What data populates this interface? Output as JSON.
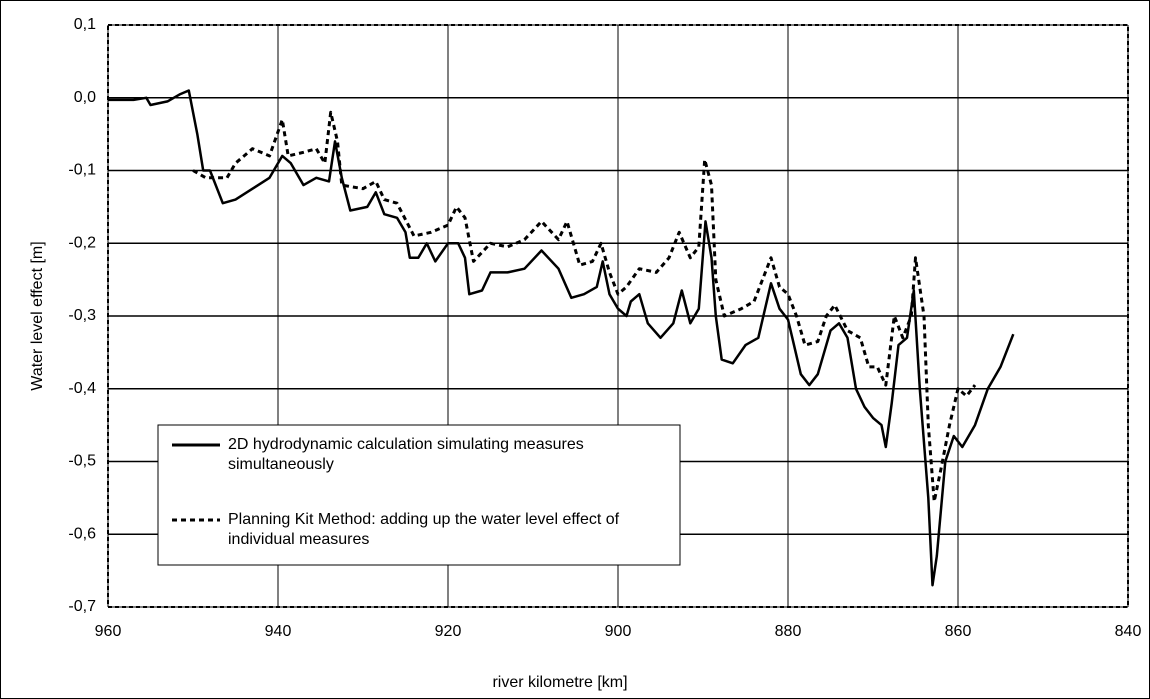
{
  "chart_data": {
    "type": "line",
    "xlabel": "river kilometre [km]",
    "ylabel": "Water level effect [m]",
    "xlim": [
      960,
      840
    ],
    "xticks": [
      960,
      940,
      920,
      900,
      880,
      860,
      840
    ],
    "ylim": [
      -0.7,
      0.1
    ],
    "yticks": [
      {
        "value": 0.1,
        "label": "0,1"
      },
      {
        "value": 0.0,
        "label": "0,0"
      },
      {
        "value": -0.1,
        "label": "-0,1"
      },
      {
        "value": -0.2,
        "label": "-0,2"
      },
      {
        "value": -0.3,
        "label": "-0,3"
      },
      {
        "value": -0.4,
        "label": "-0,4"
      },
      {
        "value": -0.5,
        "label": "-0,5"
      },
      {
        "value": -0.6,
        "label": "-0,6"
      },
      {
        "value": -0.7,
        "label": "-0,7"
      }
    ],
    "grid": true,
    "series": [
      {
        "name": "2D hydrodynamic calculation simulating measures simultaneously",
        "color": "#000000",
        "line_style": "solid",
        "x": [
          960,
          957,
          955.5,
          955,
          953,
          951.5,
          950.5,
          949.5,
          948.8,
          948,
          946.5,
          945,
          943,
          941,
          939.5,
          938.5,
          937,
          935.5,
          934,
          933.3,
          932.5,
          931.5,
          929.5,
          928.5,
          927.5,
          926,
          925,
          924.5,
          923.5,
          922.5,
          921.5,
          920,
          918.8,
          918,
          917.5,
          916,
          915,
          913,
          911,
          909,
          907,
          905.5,
          904,
          902.5,
          901.8,
          901,
          900,
          899,
          898.5,
          897.5,
          896.5,
          895,
          893.5,
          892.5,
          891.5,
          890.5,
          889.7,
          889,
          888.5,
          887.8,
          886.5,
          885,
          883.5,
          882,
          881,
          880,
          879.5,
          878.5,
          877.5,
          876.5,
          875,
          874,
          873,
          872,
          871,
          870,
          869,
          868.5,
          867.8,
          867,
          866,
          865.2,
          864.5,
          863.5,
          863,
          862.5,
          861.5,
          860.5,
          859.5,
          858,
          856.5,
          855,
          853.5
        ],
        "values": [
          -0.003,
          -0.003,
          0.0,
          -0.01,
          -0.005,
          0.005,
          0.01,
          -0.05,
          -0.1,
          -0.1,
          -0.145,
          -0.14,
          -0.125,
          -0.11,
          -0.08,
          -0.09,
          -0.12,
          -0.11,
          -0.115,
          -0.06,
          -0.11,
          -0.155,
          -0.15,
          -0.13,
          -0.16,
          -0.165,
          -0.185,
          -0.22,
          -0.22,
          -0.2,
          -0.225,
          -0.2,
          -0.2,
          -0.22,
          -0.27,
          -0.265,
          -0.24,
          -0.24,
          -0.235,
          -0.21,
          -0.235,
          -0.275,
          -0.27,
          -0.26,
          -0.225,
          -0.27,
          -0.29,
          -0.3,
          -0.28,
          -0.27,
          -0.31,
          -0.33,
          -0.31,
          -0.265,
          -0.31,
          -0.29,
          -0.17,
          -0.22,
          -0.3,
          -0.36,
          -0.365,
          -0.34,
          -0.33,
          -0.255,
          -0.29,
          -0.305,
          -0.33,
          -0.38,
          -0.395,
          -0.38,
          -0.32,
          -0.31,
          -0.33,
          -0.4,
          -0.425,
          -0.44,
          -0.45,
          -0.48,
          -0.42,
          -0.34,
          -0.33,
          -0.265,
          -0.4,
          -0.55,
          -0.67,
          -0.63,
          -0.5,
          -0.465,
          -0.48,
          -0.45,
          -0.4,
          -0.37,
          -0.325
        ]
      },
      {
        "name": "Planning Kit Method: adding up the water level effect of individual measures",
        "color": "#000000",
        "line_style": "dashed",
        "x": [
          950,
          948.5,
          946,
          945,
          943,
          941,
          939.5,
          938.8,
          937,
          935.5,
          934.5,
          933.8,
          933,
          932.5,
          930,
          928.5,
          927.5,
          926,
          924,
          922,
          920,
          919,
          918,
          917,
          915,
          913,
          911,
          909,
          907,
          906,
          904.5,
          903,
          902,
          901,
          900,
          899,
          897.5,
          895.5,
          894,
          892.8,
          891.5,
          890.5,
          889.8,
          889,
          888.5,
          887.5,
          885.5,
          884,
          882,
          881,
          880,
          879,
          878,
          876.5,
          875.5,
          874.5,
          873,
          871.5,
          870.5,
          869.5,
          868.5,
          867.5,
          866.5,
          865.5,
          865,
          864,
          863.5,
          862.8,
          862,
          861,
          860,
          859,
          858
        ],
        "values": [
          -0.1,
          -0.11,
          -0.11,
          -0.09,
          -0.07,
          -0.08,
          -0.03,
          -0.08,
          -0.075,
          -0.07,
          -0.09,
          -0.02,
          -0.06,
          -0.12,
          -0.125,
          -0.115,
          -0.14,
          -0.145,
          -0.19,
          -0.185,
          -0.175,
          -0.15,
          -0.165,
          -0.225,
          -0.2,
          -0.205,
          -0.195,
          -0.17,
          -0.195,
          -0.17,
          -0.23,
          -0.225,
          -0.2,
          -0.24,
          -0.27,
          -0.26,
          -0.235,
          -0.24,
          -0.22,
          -0.185,
          -0.22,
          -0.205,
          -0.085,
          -0.12,
          -0.25,
          -0.3,
          -0.29,
          -0.28,
          -0.22,
          -0.26,
          -0.27,
          -0.3,
          -0.34,
          -0.335,
          -0.3,
          -0.285,
          -0.32,
          -0.33,
          -0.37,
          -0.37,
          -0.395,
          -0.3,
          -0.33,
          -0.3,
          -0.22,
          -0.3,
          -0.45,
          -0.555,
          -0.51,
          -0.45,
          -0.4,
          -0.41,
          -0.395
        ]
      }
    ]
  }
}
